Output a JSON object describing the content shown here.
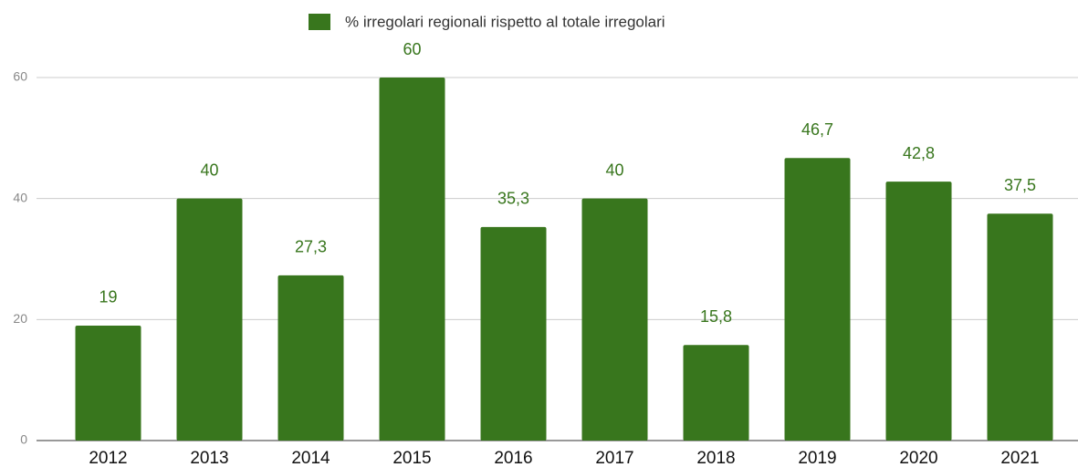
{
  "chart_data": {
    "type": "bar",
    "categories": [
      "2012",
      "2013",
      "2014",
      "2015",
      "2016",
      "2017",
      "2018",
      "2019",
      "2020",
      "2021"
    ],
    "series": [
      {
        "name": "% irregolari regionali rispetto al totale irregolari",
        "color": "#38761d",
        "values": [
          19,
          40,
          27.3,
          60,
          35.3,
          40,
          15.8,
          46.7,
          42.8,
          37.5
        ],
        "value_labels": [
          "19",
          "40",
          "27,3",
          "60",
          "35,3",
          "40",
          "15,8",
          "46,7",
          "42,8",
          "37,5"
        ]
      }
    ],
    "ylim": [
      0,
      60
    ],
    "yticks": [
      0,
      20,
      40,
      60
    ],
    "grid": true,
    "legend": "top"
  }
}
